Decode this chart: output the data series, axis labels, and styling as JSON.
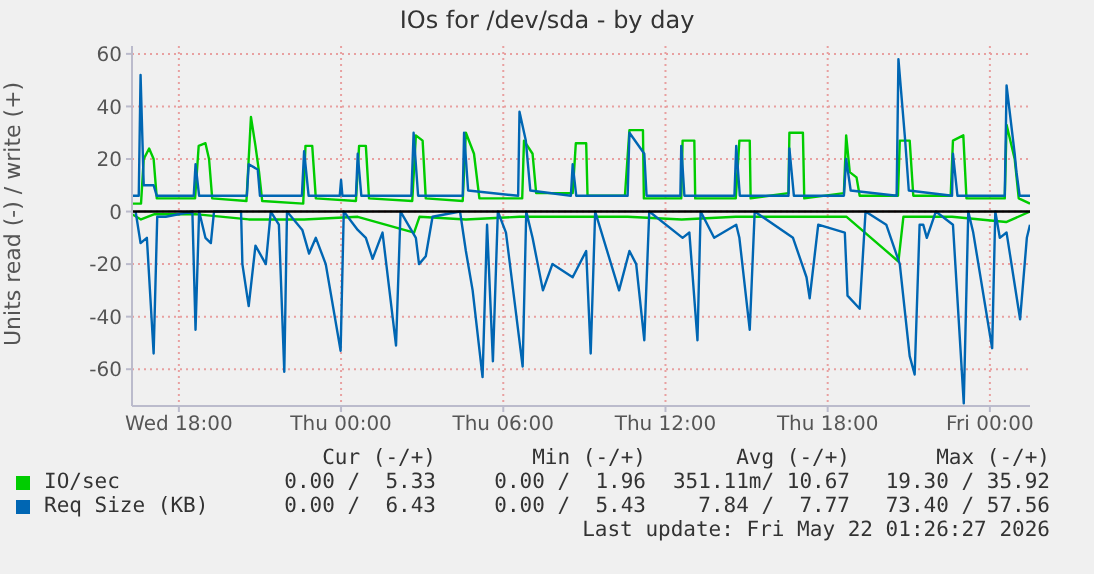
{
  "chart_data": {
    "type": "line",
    "title": "IOs for /dev/sda - by day",
    "ylabel": "Units read (-) / write (+)",
    "xlim": [
      "2026-05-20T16:16",
      "2026-05-22T01:29"
    ],
    "xticks": [
      {
        "value": "2026-05-20T18:00",
        "label": "Wed 18:00"
      },
      {
        "value": "2026-05-21T00:00",
        "label": "Thu 00:00"
      },
      {
        "value": "2026-05-21T06:00",
        "label": "Thu 06:00"
      },
      {
        "value": "2026-05-21T12:00",
        "label": "Thu 12:00"
      },
      {
        "value": "2026-05-21T18:00",
        "label": "Thu 18:00"
      },
      {
        "value": "2026-05-22T00:00",
        "label": "Fri 00:00"
      }
    ],
    "ylim": [
      -74,
      63
    ],
    "yticks": [
      -60,
      -40,
      -20,
      0,
      20,
      40,
      60
    ],
    "grid": true,
    "legend": "bottom",
    "marker": "none",
    "line_style": "solid",
    "ref_lines": [
      {
        "axis": "y",
        "value": 0,
        "color": "#000000"
      }
    ],
    "annotations": [
      "Cur (-/+)",
      "Min (-/+)",
      "Avg (-/+)",
      "Max (-/+)",
      "0.00 /  5.33",
      "0.00 /  1.96",
      "351.11m/ 10.67",
      "19.30 / 35.92",
      "0.00 /  6.43",
      "0.00 /  5.43",
      "7.84 /  7.77",
      "73.40 / 57.56",
      "Last update: Fri May 22 01:26:27 2026"
    ],
    "series": [
      {
        "name": "IO/sec",
        "color": "#00cc00",
        "x": [
          "2026-05-20T16:16",
          "2026-05-20T16:36",
          "2026-05-20T16:42",
          "2026-05-20T16:54",
          "2026-05-20T17:04",
          "2026-05-20T17:11",
          "2026-05-20T18:36",
          "2026-05-20T18:44",
          "2026-05-20T18:59",
          "2026-05-20T19:07",
          "2026-05-20T19:14",
          "2026-05-20T20:30",
          "2026-05-20T20:40",
          "2026-05-20T20:50",
          "2026-05-20T20:58",
          "2026-05-20T21:05",
          "2026-05-20T22:36",
          "2026-05-20T22:41",
          "2026-05-20T22:56",
          "2026-05-20T23:04",
          "2026-05-21T00:33",
          "2026-05-21T00:40",
          "2026-05-21T00:55",
          "2026-05-21T01:02",
          "2026-05-21T02:38",
          "2026-05-21T02:46",
          "2026-05-21T03:01",
          "2026-05-21T03:08",
          "2026-05-21T04:30",
          "2026-05-21T04:37",
          "2026-05-21T04:55",
          "2026-05-21T05:07",
          "2026-05-21T06:42",
          "2026-05-21T06:46",
          "2026-05-21T07:05",
          "2026-05-21T07:13",
          "2026-05-21T08:34",
          "2026-05-21T08:41",
          "2026-05-21T09:04",
          "2026-05-21T09:07",
          "2026-05-21T10:30",
          "2026-05-21T10:40",
          "2026-05-21T11:10",
          "2026-05-21T11:12",
          "2026-05-21T12:35",
          "2026-05-21T12:38",
          "2026-05-21T13:04",
          "2026-05-21T13:06",
          "2026-05-21T14:36",
          "2026-05-21T14:44",
          "2026-05-21T15:07",
          "2026-05-21T15:09",
          "2026-05-21T16:33",
          "2026-05-21T16:35",
          "2026-05-21T17:05",
          "2026-05-21T17:08",
          "2026-05-21T18:36",
          "2026-05-21T18:41",
          "2026-05-21T18:49",
          "2026-05-21T19:04",
          "2026-05-21T19:11",
          "2026-05-21T20:36",
          "2026-05-21T20:40",
          "2026-05-21T21:02",
          "2026-05-21T21:10",
          "2026-05-21T22:33",
          "2026-05-21T22:38",
          "2026-05-21T23:01",
          "2026-05-21T23:08",
          "2026-05-22T00:33",
          "2026-05-22T00:37",
          "2026-05-22T00:55",
          "2026-05-22T01:04",
          "2026-05-22T01:29"
        ],
        "values": [
          3,
          3,
          20,
          24,
          20,
          5,
          5,
          25,
          26,
          20,
          5,
          4,
          36,
          25,
          15,
          4,
          3,
          25,
          25,
          5,
          4,
          25,
          25,
          5,
          4,
          29,
          27,
          5,
          4,
          30,
          22,
          5,
          5,
          27,
          22,
          7,
          7,
          26,
          26,
          6,
          6,
          31,
          31,
          5,
          5,
          27,
          27,
          5,
          5,
          27,
          27,
          5,
          7,
          30,
          30,
          5,
          7,
          29,
          15,
          13,
          6,
          6,
          27,
          27,
          6,
          6,
          27,
          29,
          5,
          5,
          33,
          20,
          5,
          3
        ]
      },
      {
        "color": "#00cc00",
        "x": [
          "2026-05-20T16:16",
          "2026-05-20T16:36",
          "2026-05-20T17:06",
          "2026-05-20T18:36",
          "2026-05-20T20:35",
          "2026-05-20T22:38",
          "2026-05-21T00:37",
          "2026-05-21T02:42",
          "2026-05-21T02:54",
          "2026-05-21T04:37",
          "2026-05-21T06:36",
          "2026-05-21T08:36",
          "2026-05-21T10:36",
          "2026-05-21T12:36",
          "2026-05-21T14:36",
          "2026-05-21T16:36",
          "2026-05-21T18:42",
          "2026-05-21T20:37",
          "2026-05-21T20:48",
          "2026-05-21T22:36",
          "2026-05-22T00:36",
          "2026-05-22T01:29"
        ],
        "values": [
          -1,
          -3,
          -1,
          -1,
          -3,
          -3,
          -2,
          -8,
          -2,
          -3,
          -2,
          -2,
          -2,
          -3,
          -2,
          -2,
          -2,
          -19,
          -2,
          -2,
          -4,
          0
        ]
      },
      {
        "name": "Req Size (KB)",
        "color": "#0066b3",
        "x": [
          "2026-05-20T16:16",
          "2026-05-20T16:31",
          "2026-05-20T16:35",
          "2026-05-20T16:42",
          "2026-05-20T17:04",
          "2026-05-20T17:11",
          "2026-05-20T18:33",
          "2026-05-20T18:37",
          "2026-05-20T18:45",
          "2026-05-20T20:31",
          "2026-05-20T20:35",
          "2026-05-20T20:55",
          "2026-05-20T21:00",
          "2026-05-20T22:33",
          "2026-05-20T22:38",
          "2026-05-20T22:48",
          "2026-05-20T23:57",
          "2026-05-21T00:00",
          "2026-05-21T00:03",
          "2026-05-21T00:33",
          "2026-05-21T00:37",
          "2026-05-21T00:45",
          "2026-05-21T02:36",
          "2026-05-21T02:41",
          "2026-05-21T02:51",
          "2026-05-21T04:30",
          "2026-05-21T04:33",
          "2026-05-21T04:42",
          "2026-05-21T06:33",
          "2026-05-21T06:36",
          "2026-05-21T06:50",
          "2026-05-21T07:00",
          "2026-05-21T08:30",
          "2026-05-21T08:34",
          "2026-05-21T08:42",
          "2026-05-21T10:36",
          "2026-05-21T10:40",
          "2026-05-21T11:13",
          "2026-05-21T11:18",
          "2026-05-21T12:33",
          "2026-05-21T12:35",
          "2026-05-21T12:42",
          "2026-05-21T14:33",
          "2026-05-21T14:37",
          "2026-05-21T14:45",
          "2026-05-21T16:33",
          "2026-05-21T16:35",
          "2026-05-21T16:45",
          "2026-05-21T18:36",
          "2026-05-21T18:41",
          "2026-05-21T18:51",
          "2026-05-21T20:33",
          "2026-05-21T20:37",
          "2026-05-21T20:52",
          "2026-05-21T21:00",
          "2026-05-21T22:36",
          "2026-05-21T22:38",
          "2026-05-21T22:48",
          "2026-05-22T00:33",
          "2026-05-22T00:37",
          "2026-05-22T00:55",
          "2026-05-22T00:59",
          "2026-05-22T01:06",
          "2026-05-22T01:29"
        ],
        "values": [
          6,
          6,
          52,
          10,
          10,
          6,
          6,
          18,
          6,
          6,
          18,
          16,
          6,
          6,
          23,
          6,
          6,
          12,
          6,
          6,
          22,
          6,
          6,
          30,
          6,
          6,
          30,
          8,
          6,
          38,
          27,
          8,
          6,
          18,
          6,
          6,
          30,
          22,
          6,
          6,
          25,
          6,
          6,
          25,
          6,
          6,
          24,
          6,
          6,
          20,
          8,
          6,
          58,
          27,
          8,
          6,
          22,
          6,
          6,
          48,
          22,
          15,
          6,
          6
        ]
      },
      {
        "color": "#0066b3",
        "x": [
          "2026-05-20T16:24",
          "2026-05-20T16:35",
          "2026-05-20T16:49",
          "2026-05-20T17:04",
          "2026-05-20T17:12",
          "2026-05-20T17:31",
          "2026-05-20T18:30",
          "2026-05-20T18:37",
          "2026-05-20T18:45",
          "2026-05-20T18:59",
          "2026-05-20T19:11",
          "2026-05-20T19:18",
          "2026-05-20T20:18",
          "2026-05-20T20:21",
          "2026-05-20T20:35",
          "2026-05-20T20:50",
          "2026-05-20T21:13",
          "2026-05-20T21:24",
          "2026-05-20T21:42",
          "2026-05-20T21:54",
          "2026-05-20T22:00",
          "2026-05-20T22:34",
          "2026-05-20T22:49",
          "2026-05-20T23:04",
          "2026-05-20T23:26",
          "2026-05-20T23:59",
          "2026-05-21T00:06",
          "2026-05-21T00:37",
          "2026-05-21T00:55",
          "2026-05-21T01:10",
          "2026-05-21T01:32",
          "2026-05-21T02:02",
          "2026-05-21T02:12",
          "2026-05-21T02:46",
          "2026-05-21T02:53",
          "2026-05-21T03:08",
          "2026-05-21T03:23",
          "2026-05-21T04:24",
          "2026-05-21T04:37",
          "2026-05-21T04:52",
          "2026-05-21T05:14",
          "2026-05-21T05:24",
          "2026-05-21T05:37",
          "2026-05-21T05:48",
          "2026-05-21T06:06",
          "2026-05-21T06:43",
          "2026-05-21T06:51",
          "2026-05-21T07:05",
          "2026-05-21T07:28",
          "2026-05-21T07:49",
          "2026-05-21T08:34",
          "2026-05-21T09:04",
          "2026-05-21T09:14",
          "2026-05-21T09:24",
          "2026-05-21T10:17",
          "2026-05-21T10:40",
          "2026-05-21T10:55",
          "2026-05-21T11:13",
          "2026-05-21T11:24",
          "2026-05-21T12:38",
          "2026-05-21T12:53",
          "2026-05-21T13:11",
          "2026-05-21T13:18",
          "2026-05-21T13:48",
          "2026-05-21T14:37",
          "2026-05-21T14:44",
          "2026-05-21T15:07",
          "2026-05-21T15:18",
          "2026-05-21T16:43",
          "2026-05-21T17:13",
          "2026-05-21T17:20",
          "2026-05-21T17:39",
          "2026-05-21T18:38",
          "2026-05-21T18:44",
          "2026-05-21T19:11",
          "2026-05-21T19:24",
          "2026-05-21T20:10",
          "2026-05-21T20:40",
          "2026-05-21T21:02",
          "2026-05-21T21:13",
          "2026-05-21T21:24",
          "2026-05-21T21:32",
          "2026-05-21T21:40",
          "2026-05-21T22:00",
          "2026-05-21T22:38",
          "2026-05-21T23:02",
          "2026-05-21T23:12",
          "2026-05-21T23:23",
          "2026-05-22T00:05",
          "2026-05-22T00:12",
          "2026-05-22T00:22",
          "2026-05-22T00:37",
          "2026-05-22T01:07",
          "2026-05-22T01:22",
          "2026-05-22T01:29"
        ],
        "values": [
          0,
          -12,
          -10,
          -54,
          -2,
          -2,
          0,
          -45,
          0,
          -10,
          -12,
          0,
          0,
          -20,
          -36,
          -13,
          -20,
          0,
          -5,
          -61,
          0,
          -7,
          -16,
          -10,
          -20,
          -53,
          0,
          -7,
          -10,
          -18,
          -8,
          -51,
          0,
          -10,
          -20,
          -17,
          -2,
          0,
          -15,
          -30,
          -63,
          -5,
          -57,
          0,
          -8,
          -59,
          0,
          -10,
          -30,
          -20,
          -25,
          -15,
          -54,
          0,
          -30,
          -15,
          -20,
          -49,
          0,
          -10,
          -8,
          -49,
          0,
          -10,
          -5,
          -10,
          -45,
          0,
          -10,
          -25,
          -33,
          -5,
          -8,
          -32,
          -37,
          0,
          -5,
          -20,
          -55,
          -62,
          -5,
          -5,
          -10,
          0,
          -5,
          -73,
          0,
          -8,
          -52,
          0,
          -10,
          -8,
          -41,
          -10,
          -5
        ]
      }
    ]
  }
}
